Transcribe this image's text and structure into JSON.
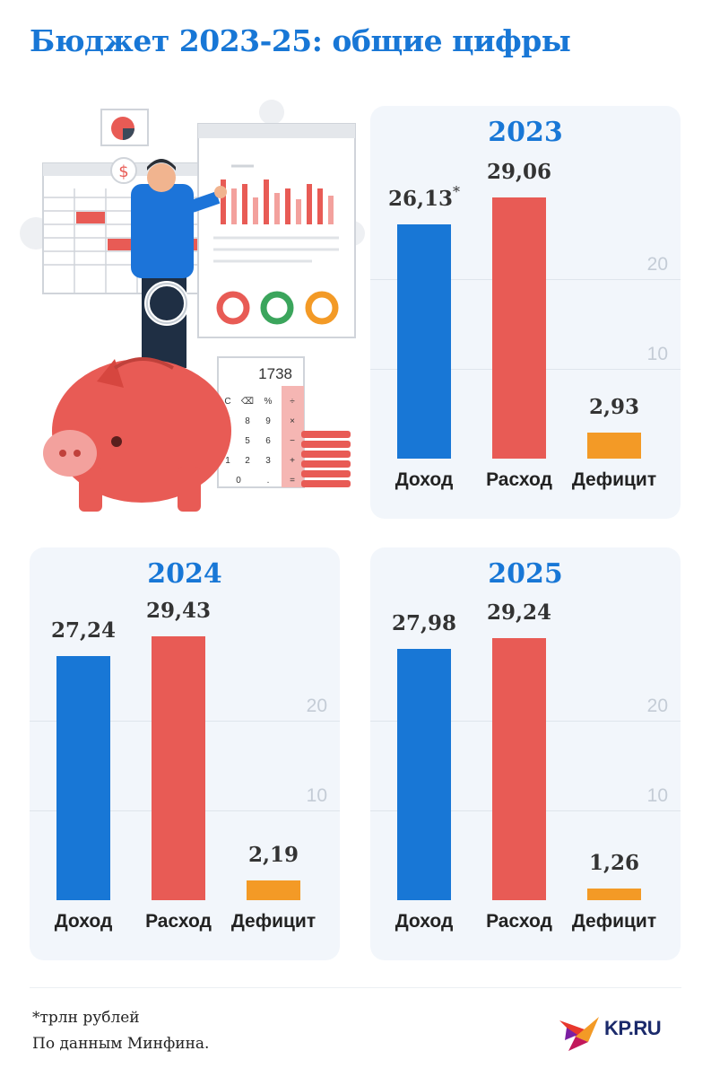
{
  "title": "Бюджет 2023-25: общие цифры",
  "colors": {
    "income": "#1877d6",
    "expense": "#e85b55",
    "deficit": "#f39a26",
    "accent": "#1877d6"
  },
  "illustration": {
    "calc_display": "1738"
  },
  "chart_data": [
    {
      "type": "bar",
      "title": "2023",
      "categories": [
        "Доход",
        "Расход",
        "Дефицит"
      ],
      "values": [
        26.13,
        29.06,
        2.93
      ],
      "labels": [
        "26,13",
        "29,06",
        "2,93"
      ],
      "note_mark": "*",
      "yticks": [
        "20",
        "10"
      ],
      "ytick_values": [
        20,
        10
      ],
      "ylim": [
        0,
        32
      ],
      "grid": true
    },
    {
      "type": "bar",
      "title": "2024",
      "categories": [
        "Доход",
        "Расход",
        "Дефицит"
      ],
      "values": [
        27.24,
        29.43,
        2.19
      ],
      "labels": [
        "27,24",
        "29,43",
        "2,19"
      ],
      "yticks": [
        "20",
        "10"
      ],
      "ytick_values": [
        20,
        10
      ],
      "ylim": [
        0,
        32
      ],
      "grid": true
    },
    {
      "type": "bar",
      "title": "2025",
      "categories": [
        "Доход",
        "Расход",
        "Дефицит"
      ],
      "values": [
        27.98,
        29.24,
        1.26
      ],
      "labels": [
        "27,98",
        "29,24",
        "1,26"
      ],
      "yticks": [
        "20",
        "10"
      ],
      "ytick_values": [
        20,
        10
      ],
      "ylim": [
        0,
        32
      ],
      "grid": true
    }
  ],
  "footnotes": {
    "units": "*трлн рублей",
    "source": "По данным Минфина."
  },
  "logo": {
    "text": "KP.RU"
  }
}
